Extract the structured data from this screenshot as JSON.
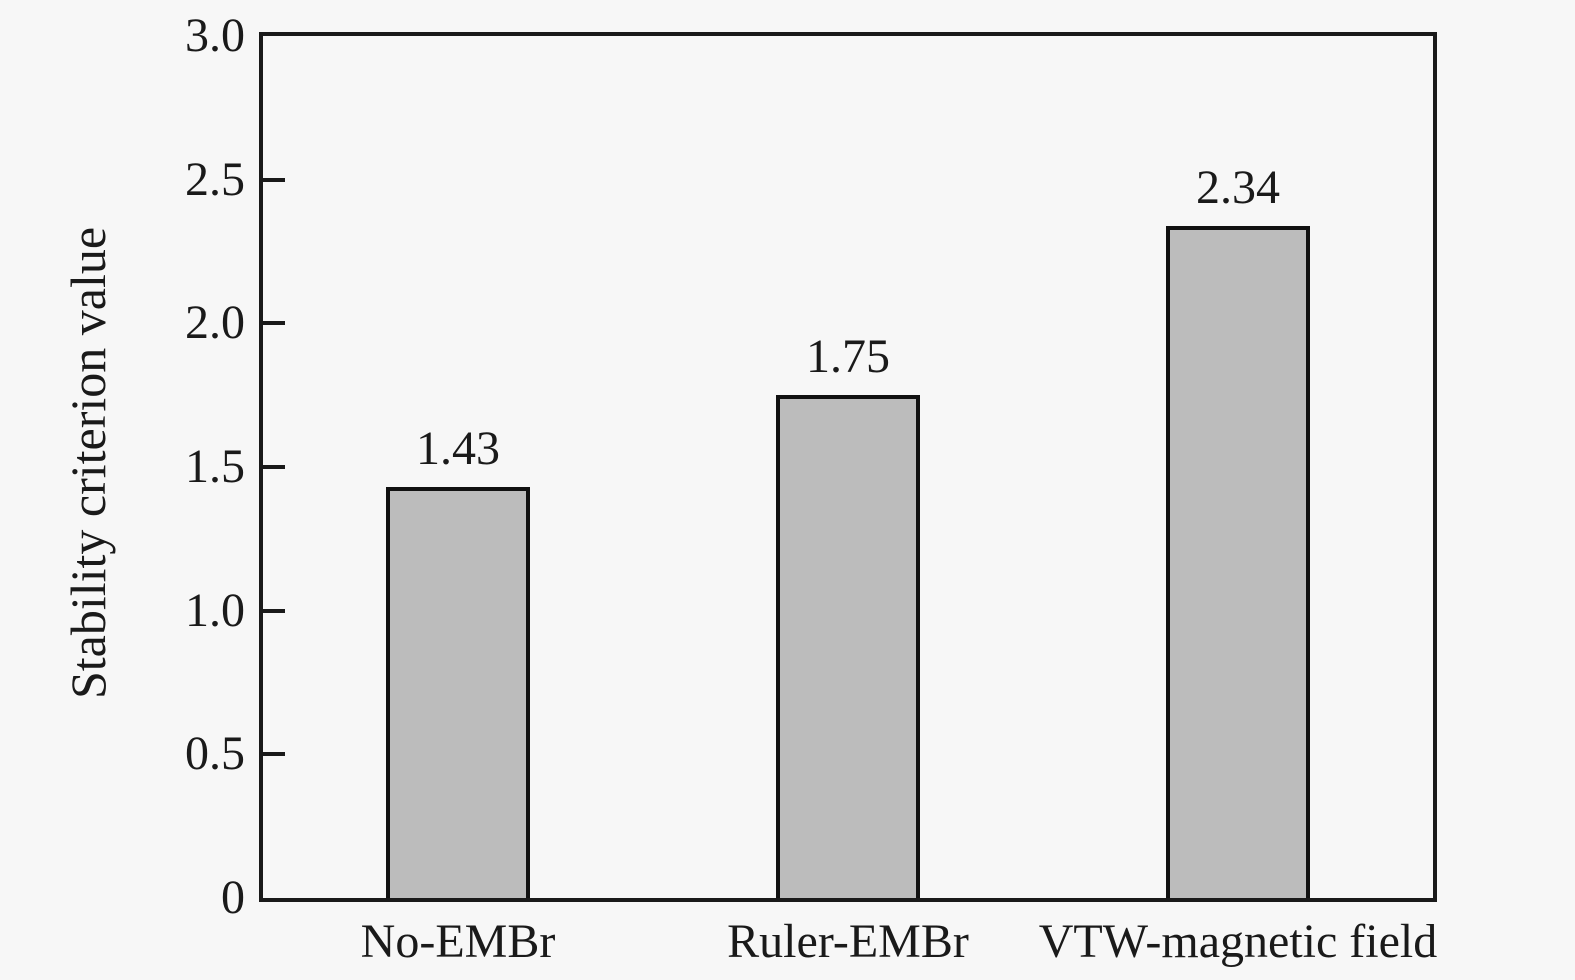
{
  "chart_data": {
    "type": "bar",
    "title": "",
    "categories": [
      "No-EMBr",
      "Ruler-EMBr",
      "VTW-magnetic field"
    ],
    "values": [
      1.43,
      1.75,
      2.34
    ],
    "value_labels": [
      "1.43",
      "1.75",
      "2.34"
    ],
    "xlabel": "",
    "ylabel": "Stability criterion value",
    "ylim": [
      0,
      3.0
    ],
    "yticks": [
      {
        "value": 3.0,
        "label": "3.0"
      },
      {
        "value": 2.5,
        "label": "2.5"
      },
      {
        "value": 2.0,
        "label": "2.0"
      },
      {
        "value": 1.5,
        "label": "1.5"
      },
      {
        "value": 1.0,
        "label": "1.0"
      },
      {
        "value": 0.5,
        "label": "0.5"
      },
      {
        "value": 0.0,
        "label": "0"
      }
    ],
    "inner_ticks_only_left_axis": true,
    "grid": false,
    "legend_position": "none",
    "colors": {
      "background": "#f7f7f7",
      "bar_fill": "#bcbcbc",
      "bar_border": "#111111",
      "axis": "#1a1a1a",
      "text": "#1a1a1a"
    }
  }
}
